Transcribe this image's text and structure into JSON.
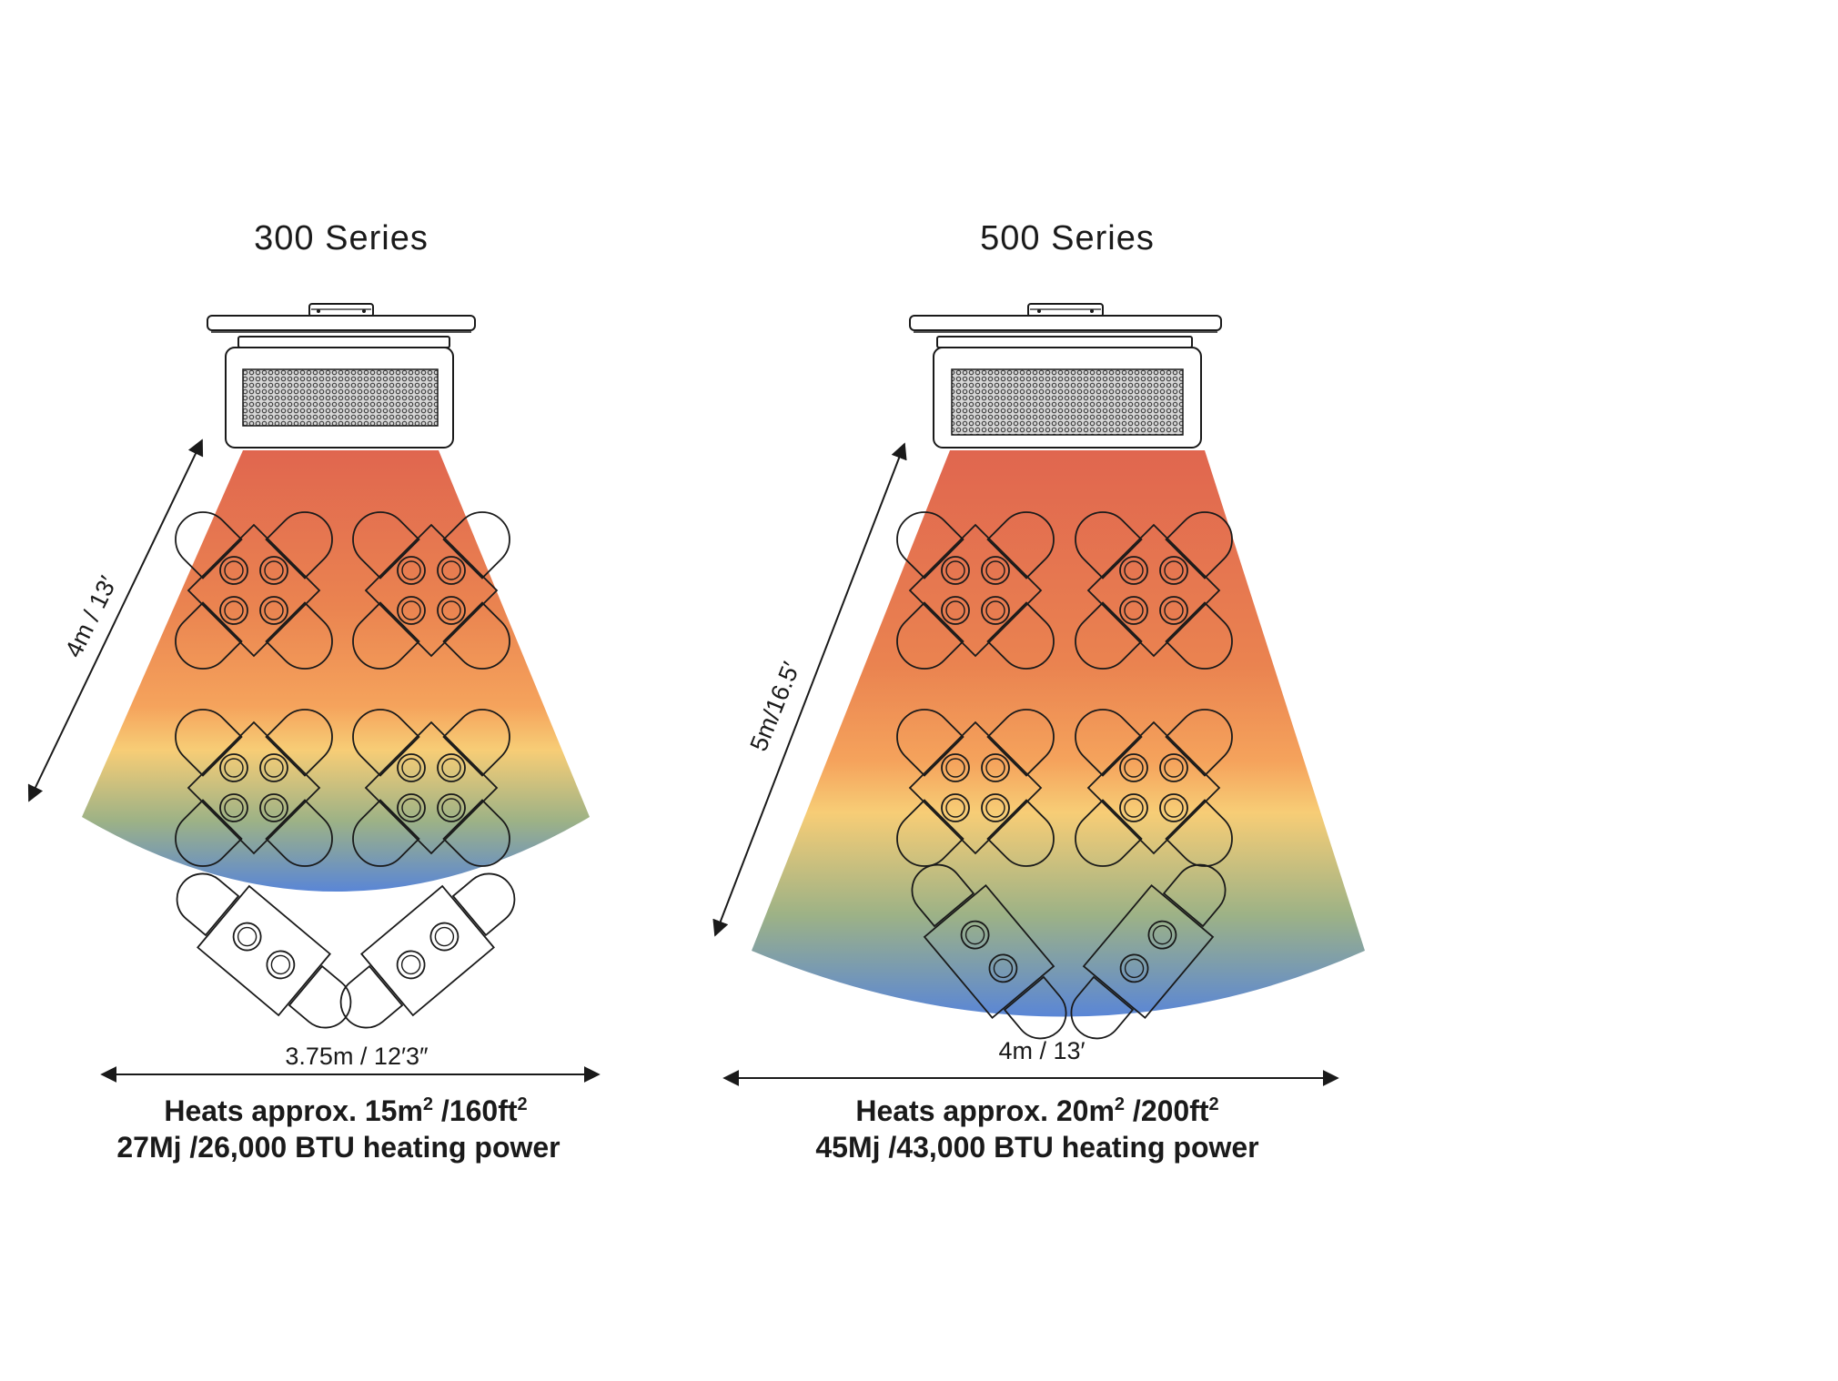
{
  "panels": [
    {
      "title": "300 Series",
      "radius_label": "4m / 13′",
      "width_label": "3.75m / 12′3″",
      "area_line_prefix": "Heats approx. 15m",
      "area_line_sup1": "2",
      "area_line_middle": " /160ft",
      "area_line_sup2": "2",
      "power_line": "27Mj /26,000 BTU heating power"
    },
    {
      "title": "500 Series",
      "radius_label": "5m/16.5′",
      "width_label": "4m / 13′",
      "area_line_prefix": "Heats approx. 20m",
      "area_line_sup1": "2",
      "area_line_middle": " /200ft",
      "area_line_sup2": "2",
      "power_line": "45Mj /43,000 BTU heating power"
    }
  ],
  "colors": {
    "heat_top": "#e0664f",
    "heat_upper": "#ea8350",
    "heat_mid": "#f5a35c",
    "heat_band": "#f7cd76",
    "heat_lower": "#9db286",
    "heat_bottom": "#5a86d6",
    "line": "#1a1a1a"
  },
  "icons": {
    "heater": "radiant-heater-icon",
    "table": "table-with-chairs-icon",
    "arrow": "double-headed-arrow-icon"
  }
}
